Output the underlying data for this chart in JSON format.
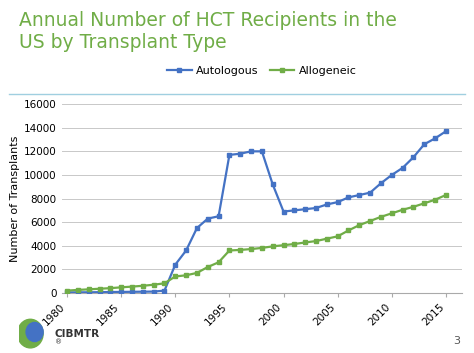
{
  "title_line1": "Annual Number of HCT Recipients in the",
  "title_line2": "US by Transplant Type",
  "title_color": "#70ad47",
  "ylabel": "Number of Transplants",
  "ylabel_fontsize": 8,
  "title_fontsize": 13.5,
  "background_color": "#ffffff",
  "ylim": [
    0,
    16000
  ],
  "yticks": [
    0,
    2000,
    4000,
    6000,
    8000,
    10000,
    12000,
    14000,
    16000
  ],
  "xlim": [
    1979.5,
    2016.5
  ],
  "xticks": [
    1980,
    1985,
    1990,
    1995,
    2000,
    2005,
    2010,
    2015
  ],
  "autologous_color": "#4472c4",
  "allogeneic_color": "#70ad47",
  "legend_labels": [
    "Autologous",
    "Allogeneic"
  ],
  "autologous_data": {
    "years": [
      1980,
      1981,
      1982,
      1983,
      1984,
      1985,
      1986,
      1987,
      1988,
      1989,
      1990,
      1991,
      1992,
      1993,
      1994,
      1995,
      1996,
      1997,
      1998,
      1999,
      2000,
      2001,
      2002,
      2003,
      2004,
      2005,
      2006,
      2007,
      2008,
      2009,
      2010,
      2011,
      2012,
      2013,
      2014,
      2015
    ],
    "values": [
      50,
      55,
      60,
      70,
      80,
      90,
      100,
      110,
      120,
      200,
      2400,
      3600,
      5500,
      6300,
      6500,
      11700,
      11800,
      12000,
      12000,
      9200,
      6900,
      7000,
      7100,
      7200,
      7500,
      7700,
      8100,
      8300,
      8500,
      9300,
      10000,
      10600,
      11500,
      12600,
      13100,
      13700
    ]
  },
  "allogeneic_data": {
    "years": [
      1980,
      1981,
      1982,
      1983,
      1984,
      1985,
      1986,
      1987,
      1988,
      1989,
      1990,
      1991,
      1992,
      1993,
      1994,
      1995,
      1996,
      1997,
      1998,
      1999,
      2000,
      2001,
      2002,
      2003,
      2004,
      2005,
      2006,
      2007,
      2008,
      2009,
      2010,
      2011,
      2012,
      2013,
      2014,
      2015
    ],
    "values": [
      200,
      260,
      310,
      360,
      410,
      480,
      540,
      610,
      700,
      820,
      1400,
      1500,
      1700,
      2200,
      2600,
      3600,
      3650,
      3720,
      3820,
      3950,
      4050,
      4150,
      4280,
      4400,
      4600,
      4800,
      5300,
      5750,
      6100,
      6450,
      6750,
      7050,
      7300,
      7600,
      7900,
      8300
    ]
  },
  "grid_color": "#c8c8c8",
  "tick_label_fontsize": 7.5,
  "line_width": 1.6,
  "marker": "s",
  "marker_size": 2.8,
  "separator_color": "#a0cfe0",
  "footer_color": "#555555",
  "page_num": "3"
}
